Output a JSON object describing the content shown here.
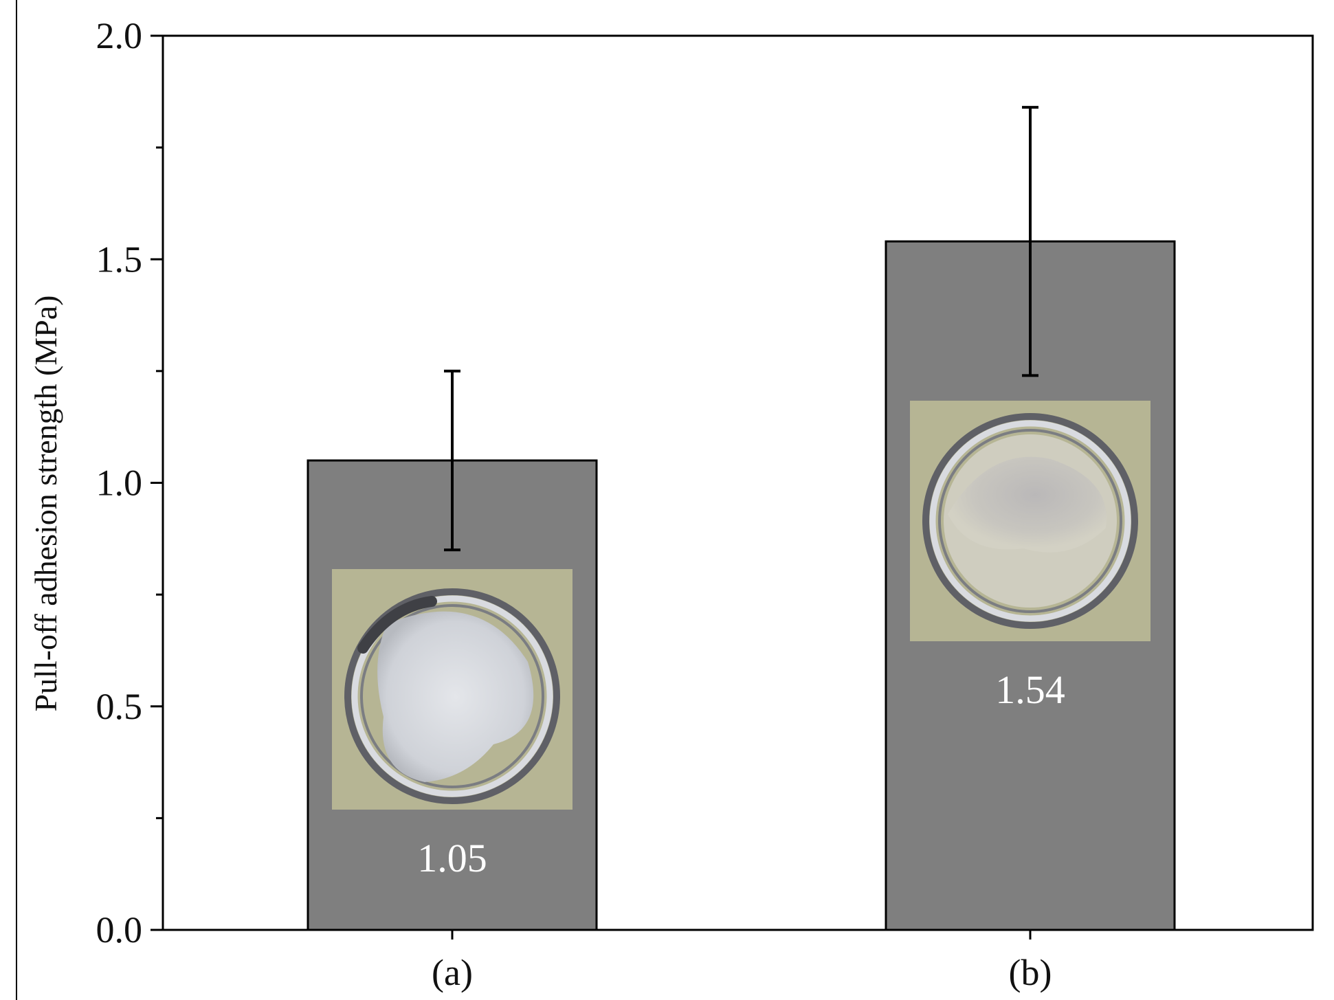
{
  "chart_data": {
    "type": "bar",
    "title": "",
    "xlabel": "",
    "ylabel": "Pull-off adhesion strength (MPa)",
    "categories": [
      "(a)",
      "(b)"
    ],
    "values": [
      1.05,
      1.54
    ],
    "error_upper": [
      1.25,
      1.84
    ],
    "error_lower": [
      0.85,
      1.24
    ],
    "value_labels": [
      "1.05",
      "1.54"
    ],
    "ylim": [
      0.0,
      2.0
    ],
    "y_major_ticks": [
      0.0,
      0.5,
      1.0,
      1.5,
      2.0
    ],
    "y_tick_labels": [
      "0.0",
      "0.5",
      "1.0",
      "1.5",
      "2.0"
    ],
    "y_minor_ticks": [
      0.25,
      0.75,
      1.25,
      1.75
    ],
    "grid": false,
    "legend": "none",
    "inset_images": [
      "pull-off-surface-photo-a",
      "pull-off-surface-photo-b"
    ],
    "colors": {
      "bar_fill": "#7f7f7f",
      "bar_edge": "#000000",
      "error_bar": "#000000",
      "value_label": "#ffffff",
      "photo_background": "#b6b594"
    }
  }
}
